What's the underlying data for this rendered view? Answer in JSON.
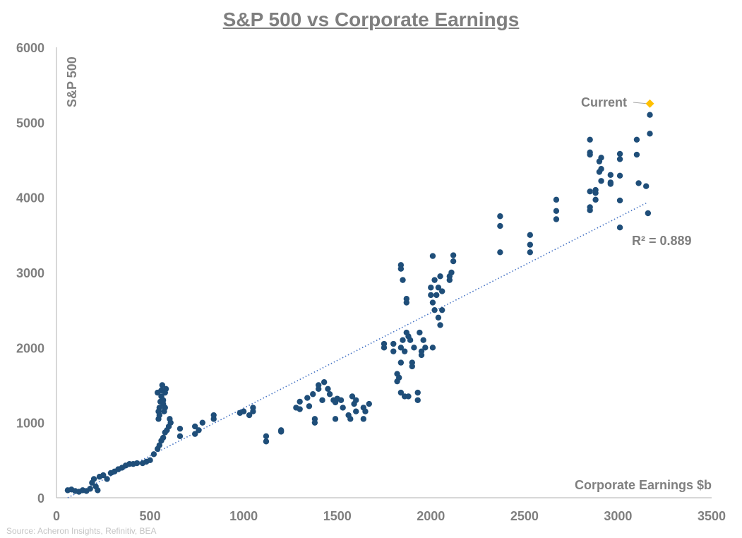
{
  "chart_data": {
    "type": "scatter",
    "title": "S&P 500 vs Corporate Earnings",
    "xlabel": "Corporate Earnings $b",
    "ylabel": "S&P 500",
    "xlim": [
      0,
      3500
    ],
    "ylim": [
      0,
      6000
    ],
    "xticks": [
      0,
      500,
      1000,
      1500,
      2000,
      2500,
      3000,
      3500
    ],
    "yticks": [
      0,
      1000,
      2000,
      3000,
      4000,
      5000,
      6000
    ],
    "grid": false,
    "colors": {
      "points": "#1f4e79",
      "current": "#ffc000",
      "trend": "#4472c4",
      "text": "#7f7f7f"
    },
    "points": [
      [
        60,
        100
      ],
      [
        80,
        110
      ],
      [
        100,
        90
      ],
      [
        120,
        80
      ],
      [
        140,
        100
      ],
      [
        160,
        90
      ],
      [
        180,
        120
      ],
      [
        190,
        200
      ],
      [
        200,
        250
      ],
      [
        210,
        150
      ],
      [
        220,
        100
      ],
      [
        230,
        280
      ],
      [
        250,
        300
      ],
      [
        270,
        250
      ],
      [
        290,
        330
      ],
      [
        310,
        350
      ],
      [
        330,
        380
      ],
      [
        350,
        400
      ],
      [
        370,
        430
      ],
      [
        390,
        450
      ],
      [
        410,
        450
      ],
      [
        430,
        460
      ],
      [
        460,
        460
      ],
      [
        480,
        480
      ],
      [
        500,
        500
      ],
      [
        520,
        580
      ],
      [
        540,
        650
      ],
      [
        550,
        700
      ],
      [
        560,
        760
      ],
      [
        570,
        800
      ],
      [
        580,
        870
      ],
      [
        590,
        900
      ],
      [
        600,
        950
      ],
      [
        610,
        1000
      ],
      [
        605,
        1050
      ],
      [
        545,
        1050
      ],
      [
        550,
        1100
      ],
      [
        550,
        1200
      ],
      [
        555,
        1280
      ],
      [
        560,
        1350
      ],
      [
        560,
        1430
      ],
      [
        565,
        1500
      ],
      [
        570,
        1300
      ],
      [
        570,
        1250
      ],
      [
        575,
        1150
      ],
      [
        580,
        1400
      ],
      [
        585,
        1450
      ],
      [
        540,
        1400
      ],
      [
        545,
        1150
      ],
      [
        580,
        1200
      ],
      [
        660,
        820
      ],
      [
        660,
        920
      ],
      [
        740,
        850
      ],
      [
        740,
        950
      ],
      [
        760,
        900
      ],
      [
        780,
        1000
      ],
      [
        840,
        1050
      ],
      [
        840,
        1100
      ],
      [
        980,
        1130
      ],
      [
        1000,
        1150
      ],
      [
        1030,
        1100
      ],
      [
        1050,
        1200
      ],
      [
        1050,
        1150
      ],
      [
        1120,
        750
      ],
      [
        1120,
        820
      ],
      [
        1200,
        880
      ],
      [
        1200,
        900
      ],
      [
        1280,
        1200
      ],
      [
        1300,
        1180
      ],
      [
        1300,
        1280
      ],
      [
        1340,
        1330
      ],
      [
        1350,
        1220
      ],
      [
        1370,
        1380
      ],
      [
        1380,
        1050
      ],
      [
        1380,
        1000
      ],
      [
        1400,
        1450
      ],
      [
        1400,
        1500
      ],
      [
        1420,
        1300
      ],
      [
        1430,
        1540
      ],
      [
        1450,
        1450
      ],
      [
        1460,
        1380
      ],
      [
        1480,
        1300
      ],
      [
        1490,
        1270
      ],
      [
        1500,
        1320
      ],
      [
        1490,
        1050
      ],
      [
        1520,
        1300
      ],
      [
        1530,
        1200
      ],
      [
        1560,
        1100
      ],
      [
        1570,
        1050
      ],
      [
        1580,
        1350
      ],
      [
        1590,
        1250
      ],
      [
        1600,
        1300
      ],
      [
        1600,
        1150
      ],
      [
        1640,
        1200
      ],
      [
        1640,
        1050
      ],
      [
        1650,
        1150
      ],
      [
        1670,
        1250
      ],
      [
        1750,
        2050
      ],
      [
        1750,
        2000
      ],
      [
        1800,
        1950
      ],
      [
        1800,
        2050
      ],
      [
        1820,
        1650
      ],
      [
        1820,
        1550
      ],
      [
        1830,
        1600
      ],
      [
        1840,
        1400
      ],
      [
        1840,
        1800
      ],
      [
        1840,
        2000
      ],
      [
        1840,
        3100
      ],
      [
        1840,
        3050
      ],
      [
        1850,
        2900
      ],
      [
        1850,
        2100
      ],
      [
        1860,
        1350
      ],
      [
        1860,
        1950
      ],
      [
        1870,
        2200
      ],
      [
        1870,
        2650
      ],
      [
        1870,
        2600
      ],
      [
        1880,
        2150
      ],
      [
        1880,
        1350
      ],
      [
        1890,
        2100
      ],
      [
        1900,
        1800
      ],
      [
        1900,
        1750
      ],
      [
        1910,
        2000
      ],
      [
        1930,
        1400
      ],
      [
        1930,
        1300
      ],
      [
        1940,
        2200
      ],
      [
        1950,
        1950
      ],
      [
        1950,
        1900
      ],
      [
        1960,
        2100
      ],
      [
        1970,
        2000
      ],
      [
        2000,
        2700
      ],
      [
        2000,
        2800
      ],
      [
        2010,
        3220
      ],
      [
        2010,
        2600
      ],
      [
        2010,
        2000
      ],
      [
        2020,
        2900
      ],
      [
        2020,
        2500
      ],
      [
        2030,
        2700
      ],
      [
        2040,
        2800
      ],
      [
        2040,
        2400
      ],
      [
        2050,
        2300
      ],
      [
        2050,
        2950
      ],
      [
        2060,
        2500
      ],
      [
        2060,
        2750
      ],
      [
        2100,
        2950
      ],
      [
        2110,
        3000
      ],
      [
        2120,
        3230
      ],
      [
        2120,
        3150
      ],
      [
        2100,
        2900
      ],
      [
        2370,
        3750
      ],
      [
        2370,
        3620
      ],
      [
        2370,
        3270
      ],
      [
        2530,
        3500
      ],
      [
        2530,
        3370
      ],
      [
        2530,
        3270
      ],
      [
        2670,
        3970
      ],
      [
        2670,
        3820
      ],
      [
        2670,
        3710
      ],
      [
        2850,
        4770
      ],
      [
        2850,
        4600
      ],
      [
        2850,
        4570
      ],
      [
        2850,
        4080
      ],
      [
        2850,
        3870
      ],
      [
        2850,
        3830
      ],
      [
        2880,
        4100
      ],
      [
        2880,
        4060
      ],
      [
        2880,
        3970
      ],
      [
        2910,
        4530
      ],
      [
        2900,
        4480
      ],
      [
        2910,
        4380
      ],
      [
        2900,
        4340
      ],
      [
        2910,
        4220
      ],
      [
        2960,
        4300
      ],
      [
        2960,
        4200
      ],
      [
        2960,
        4180
      ],
      [
        3010,
        4580
      ],
      [
        3010,
        4510
      ],
      [
        3010,
        4290
      ],
      [
        3010,
        3960
      ],
      [
        3010,
        3600
      ],
      [
        3100,
        4770
      ],
      [
        3100,
        4570
      ],
      [
        3110,
        4190
      ],
      [
        3150,
        4150
      ],
      [
        3160,
        3790
      ],
      [
        3170,
        5100
      ],
      [
        3170,
        4850
      ]
    ],
    "current": {
      "label": "Current",
      "x": 3170,
      "y": 5250
    },
    "trendline": {
      "type": "linear",
      "label": "R² = 0.889",
      "slope": 1.27,
      "intercept": -76,
      "x_range": [
        60,
        3160
      ]
    },
    "source": "Source: Acheron Insights, Refinitiv, BEA"
  }
}
